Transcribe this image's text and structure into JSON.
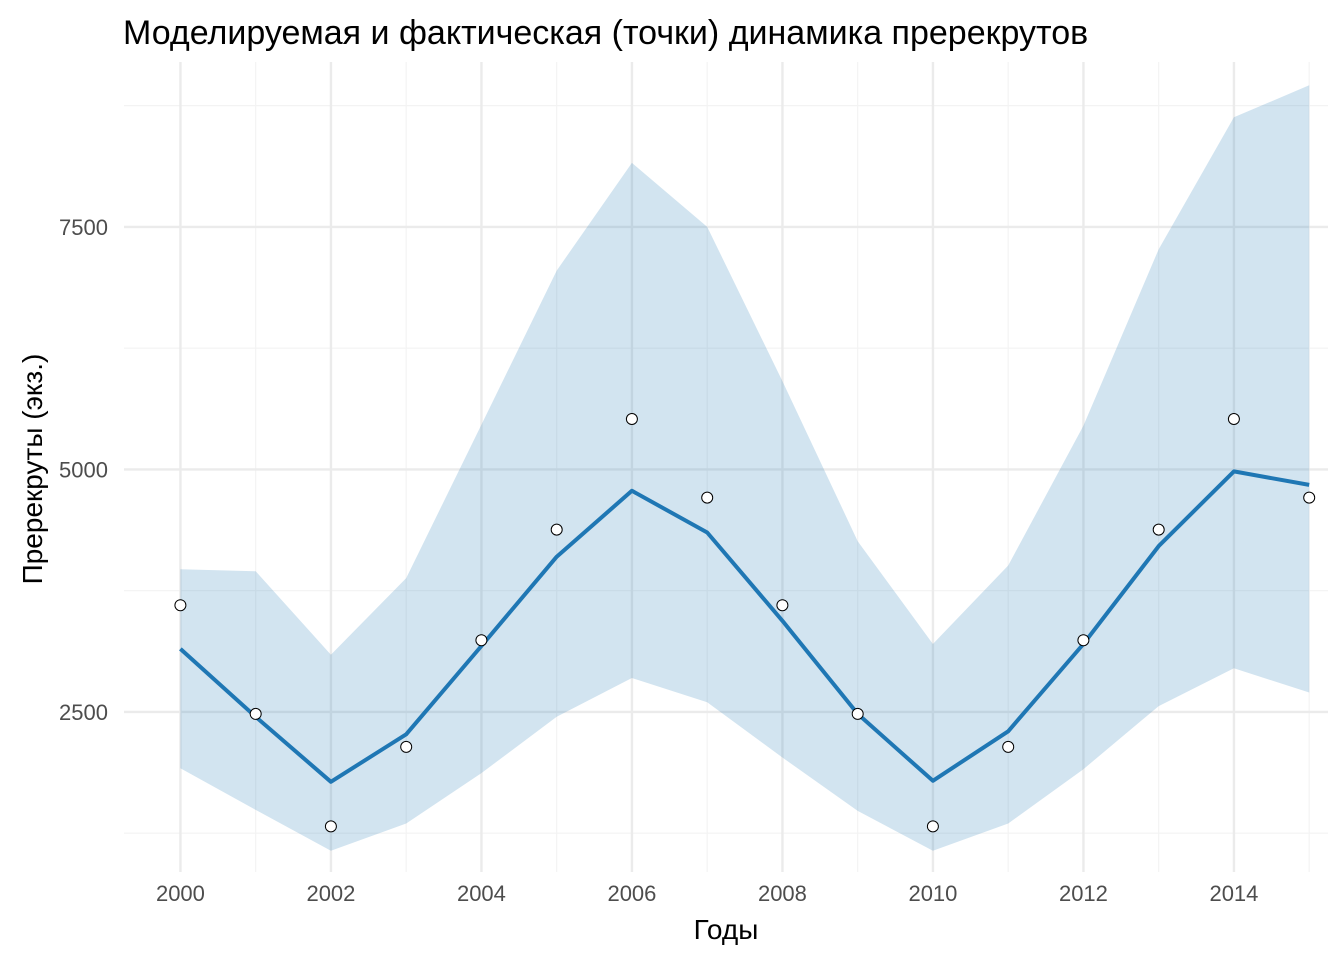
{
  "chart_data": {
    "type": "line",
    "title": "Моделируемая и фактическая (точки) динамика пререкрутов",
    "xlabel": "Годы",
    "ylabel": "Пререкруты (экз.)",
    "x": [
      2000,
      2001,
      2002,
      2003,
      2004,
      2005,
      2006,
      2007,
      2008,
      2009,
      2010,
      2011,
      2012,
      2013,
      2014,
      2015
    ],
    "series": [
      {
        "kind": "line",
        "color": "#1f77b4",
        "values": [
          3150,
          2450,
          1780,
          2270,
          3180,
          4100,
          4780,
          4350,
          3440,
          2480,
          1790,
          2300,
          3200,
          4210,
          4980,
          4840
        ]
      },
      {
        "kind": "ribbon",
        "color": "#1f77b4",
        "opacity": 0.2,
        "lower": [
          1920,
          1490,
          1070,
          1350,
          1870,
          2450,
          2850,
          2600,
          2030,
          1480,
          1070,
          1350,
          1910,
          2560,
          2950,
          2700
        ],
        "upper": [
          3970,
          3950,
          3090,
          3880,
          5460,
          7050,
          8160,
          7500,
          5910,
          4260,
          3200,
          4010,
          5450,
          7270,
          8630,
          8960
        ]
      },
      {
        "kind": "points",
        "values": [
          3600,
          2480,
          1320,
          2140,
          3240,
          4380,
          5520,
          4710,
          3600,
          2480,
          1320,
          2140,
          3240,
          4380,
          5520,
          4710
        ]
      }
    ],
    "xticks": [
      2000,
      2002,
      2004,
      2006,
      2008,
      2010,
      2012,
      2014
    ],
    "yticks": [
      2500,
      5000,
      7500
    ],
    "xlim": [
      1999.25,
      2015.25
    ],
    "ylim": [
      850,
      9200
    ],
    "grid": true,
    "legend": "none"
  }
}
